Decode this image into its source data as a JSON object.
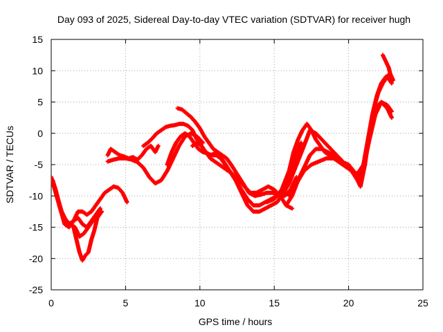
{
  "chart_data": {
    "type": "scatter",
    "title": "Day 093 of 2025, Sidereal Day-to-day VTEC variation (SDTVAR) for receiver hugh",
    "xlabel": "GPS time / hours",
    "ylabel": "SDTVAR / TECUs",
    "xlim": [
      0,
      25
    ],
    "ylim": [
      -25,
      15
    ],
    "xticks": [
      0,
      5,
      10,
      15,
      20,
      25
    ],
    "yticks": [
      -25,
      -20,
      -15,
      -10,
      -5,
      0,
      5,
      10,
      15
    ],
    "grid": true,
    "legend": "none",
    "marker": "plus",
    "series": [
      {
        "color": "#ff0000",
        "x": [
          0.0,
          0.3,
          0.6,
          0.9,
          1.2,
          1.5,
          1.8,
          2.1,
          2.4,
          2.7,
          3.0,
          3.3,
          3.6,
          3.9,
          4.2,
          4.5,
          4.8,
          5.1
        ],
        "y": [
          -7,
          -9,
          -12,
          -14.5,
          -15,
          -14,
          -12.5,
          -12.5,
          -13,
          -12.5,
          -11.5,
          -10.5,
          -9.5,
          -9,
          -8.5,
          -8.7,
          -9.5,
          -11
        ]
      },
      {
        "color": "#ff0000",
        "x": [
          0.0,
          0.3,
          0.6,
          0.9,
          1.2,
          1.5,
          1.8,
          2.1,
          2.4,
          2.7,
          3.0,
          3.3
        ],
        "y": [
          -7,
          -9.5,
          -12,
          -13.5,
          -14.5,
          -14,
          -13.5,
          -14.5,
          -15,
          -14,
          -13,
          -12
        ]
      },
      {
        "color": "#ff0000",
        "x": [
          0.1,
          0.4,
          0.7,
          1.0,
          1.3,
          1.6,
          1.9,
          2.2,
          2.5,
          2.8,
          3.1,
          3.4
        ],
        "y": [
          -7.5,
          -10,
          -12.5,
          -14,
          -14.5,
          -15,
          -16.5,
          -16,
          -15,
          -14,
          -13.5,
          -12.5
        ]
      },
      {
        "color": "#ff0000",
        "x": [
          1.5,
          1.7,
          1.9,
          2.1,
          2.3,
          2.5,
          2.7,
          2.9,
          3.1
        ],
        "y": [
          -15,
          -17,
          -19,
          -20.3,
          -19.5,
          -19,
          -17,
          -15.5,
          -13.5
        ]
      },
      {
        "color": "#ff0000",
        "x": [
          3.8,
          4.0,
          4.3,
          4.6,
          4.9,
          5.2,
          5.5,
          5.8,
          6.1,
          6.4,
          6.7,
          7.0,
          7.2
        ],
        "y": [
          -3.5,
          -2.5,
          -3,
          -3.5,
          -3.7,
          -4,
          -3.8,
          -4.2,
          -3.5,
          -2.5,
          -2,
          -3,
          -2
        ]
      },
      {
        "color": "#ff0000",
        "x": [
          3.8,
          4.2,
          4.6,
          5.0,
          5.4,
          5.8,
          6.2,
          6.6,
          7.0,
          7.4,
          7.8,
          8.2,
          8.6,
          9.0,
          9.4,
          9.8,
          10.2
        ],
        "y": [
          -4.5,
          -4.2,
          -4,
          -4,
          -4.2,
          -4.6,
          -5.5,
          -7,
          -8,
          -7.5,
          -6,
          -4,
          -2,
          -0.5,
          0,
          -0.5,
          -1.5
        ]
      },
      {
        "color": "#ff0000",
        "x": [
          6.2,
          6.5,
          6.8,
          7.1,
          7.4,
          7.7,
          8.0,
          8.3,
          8.6,
          8.9,
          9.2,
          9.5,
          9.8,
          10.1,
          10.4,
          10.7,
          11.0,
          11.3,
          11.6,
          12.0,
          12.4,
          12.8,
          13.2,
          13.6,
          14.0,
          14.4,
          14.8,
          15.2,
          15.6,
          16.0,
          16.4,
          16.8
        ],
        "y": [
          -2,
          -1.5,
          -0.8,
          0,
          0.5,
          1,
          1.2,
          1.3,
          1.5,
          1.5,
          1.2,
          0.5,
          -1,
          -2,
          -3,
          -3.5,
          -3.2,
          -3.5,
          -4.5,
          -6,
          -7.5,
          -9.5,
          -11.5,
          -12.5,
          -12.5,
          -12,
          -11.5,
          -11,
          -9.5,
          -7,
          -4,
          -1.5
        ]
      },
      {
        "color": "#ff0000",
        "x": [
          7.8,
          8.1,
          8.4,
          8.7,
          9.0,
          9.3,
          9.6,
          9.9,
          10.2,
          10.5,
          10.8,
          11.1,
          11.4,
          11.7,
          12.0,
          12.4,
          12.8,
          13.2,
          13.6,
          14.0,
          14.4,
          14.8,
          15.2,
          15.6,
          16.0,
          16.4
        ],
        "y": [
          -5,
          -3,
          -1.5,
          -0.5,
          0,
          -0.5,
          -1.5,
          -2.5,
          -3,
          -3.2,
          -3.5,
          -3.5,
          -4,
          -5,
          -6,
          -7.5,
          -9,
          -10.5,
          -11.5,
          -11.5,
          -11,
          -10.5,
          -10,
          -9,
          -7.5,
          -5
        ]
      },
      {
        "color": "#ff0000",
        "x": [
          8.5,
          8.8,
          9.1,
          9.4,
          9.7,
          10.0,
          10.3,
          10.6,
          10.9,
          11.2,
          11.5,
          11.8,
          12.1,
          12.5,
          12.9,
          13.3,
          13.7,
          14.1,
          14.5,
          14.9,
          15.3,
          15.7,
          16.1,
          16.5
        ],
        "y": [
          4,
          3.8,
          3.2,
          2.6,
          1.8,
          0.8,
          -0.5,
          -1.5,
          -2.5,
          -3,
          -3.5,
          -4,
          -5,
          -6.5,
          -8,
          -9.5,
          -10,
          -9.8,
          -9.5,
          -9.5,
          -9.8,
          -10,
          -9,
          -7
        ]
      },
      {
        "color": "#ff0000",
        "x": [
          9.5,
          9.8,
          10.1,
          10.4,
          10.7,
          11.0,
          11.3,
          11.6,
          11.9,
          12.2,
          12.6,
          13.0,
          13.4,
          13.8,
          14.2,
          14.6,
          15.0,
          15.4,
          15.8,
          16.2
        ],
        "y": [
          -2,
          -1.5,
          -2,
          -3,
          -4,
          -4.5,
          -5,
          -5.5,
          -6,
          -6.5,
          -7.5,
          -8.5,
          -9.5,
          -9.5,
          -9,
          -8.5,
          -9,
          -10,
          -11.5,
          -12
        ]
      },
      {
        "color": "#ff0000",
        "x": [
          14.5,
          15.0,
          15.5,
          16.0,
          16.3,
          16.6,
          16.9,
          17.2,
          17.5,
          17.8,
          18.1,
          18.4,
          18.7,
          19.0,
          19.3,
          19.6,
          19.9,
          20.2,
          20.5,
          20.8,
          21.1,
          21.4,
          21.7,
          22.0,
          22.3,
          22.6,
          22.9
        ],
        "y": [
          -11,
          -10.5,
          -9,
          -6,
          -3,
          -1,
          0.5,
          1.5,
          0.5,
          -1,
          -2,
          -3,
          -3.5,
          -4,
          -4.5,
          -5,
          -5.5,
          -6,
          -7,
          -8.5,
          -5,
          0,
          4,
          6.5,
          8,
          9,
          8
        ]
      },
      {
        "color": "#ff0000",
        "x": [
          15.5,
          16.0,
          16.5,
          17.0,
          17.4,
          17.8,
          18.2,
          18.6,
          19.0,
          19.4,
          19.8,
          20.2,
          20.6,
          21.0,
          21.3,
          21.6,
          21.9,
          22.2,
          22.5,
          22.8,
          23.0
        ],
        "y": [
          -10,
          -8,
          -5,
          -2,
          0.5,
          0,
          -1,
          -2,
          -3,
          -4,
          -5,
          -6,
          -6.5,
          -5,
          -1,
          3,
          6,
          8,
          9,
          9.5,
          8.5
        ]
      },
      {
        "color": "#ff0000",
        "x": [
          16.0,
          16.5,
          17.0,
          17.5,
          18.0,
          18.5,
          19.0,
          19.5,
          20.0,
          20.5,
          21.0,
          21.4,
          21.8,
          22.2,
          22.6,
          22.9
        ],
        "y": [
          -10,
          -8,
          -6,
          -5,
          -4.5,
          -4,
          -4,
          -4.5,
          -5,
          -6.5,
          -5.5,
          -1,
          3,
          5,
          4.5,
          3.5
        ]
      },
      {
        "color": "#ff0000",
        "x": [
          15.8,
          16.2,
          16.6,
          17.0,
          17.4,
          17.8,
          18.2,
          18.6,
          19.0,
          19.4,
          19.8,
          20.2,
          20.6,
          21.0,
          21.4,
          21.8,
          22.2,
          22.6,
          22.9
        ],
        "y": [
          -11.5,
          -10,
          -7.5,
          -5.5,
          -3.5,
          -2.5,
          -2.5,
          -3,
          -3.5,
          -4,
          -5,
          -6,
          -7.5,
          -5,
          0,
          4,
          5,
          4,
          2.5
        ]
      },
      {
        "color": "#ff0000",
        "x": [
          22.3,
          22.5,
          22.7,
          22.9
        ],
        "y": [
          12.5,
          11.5,
          10.5,
          8.5
        ]
      }
    ]
  }
}
